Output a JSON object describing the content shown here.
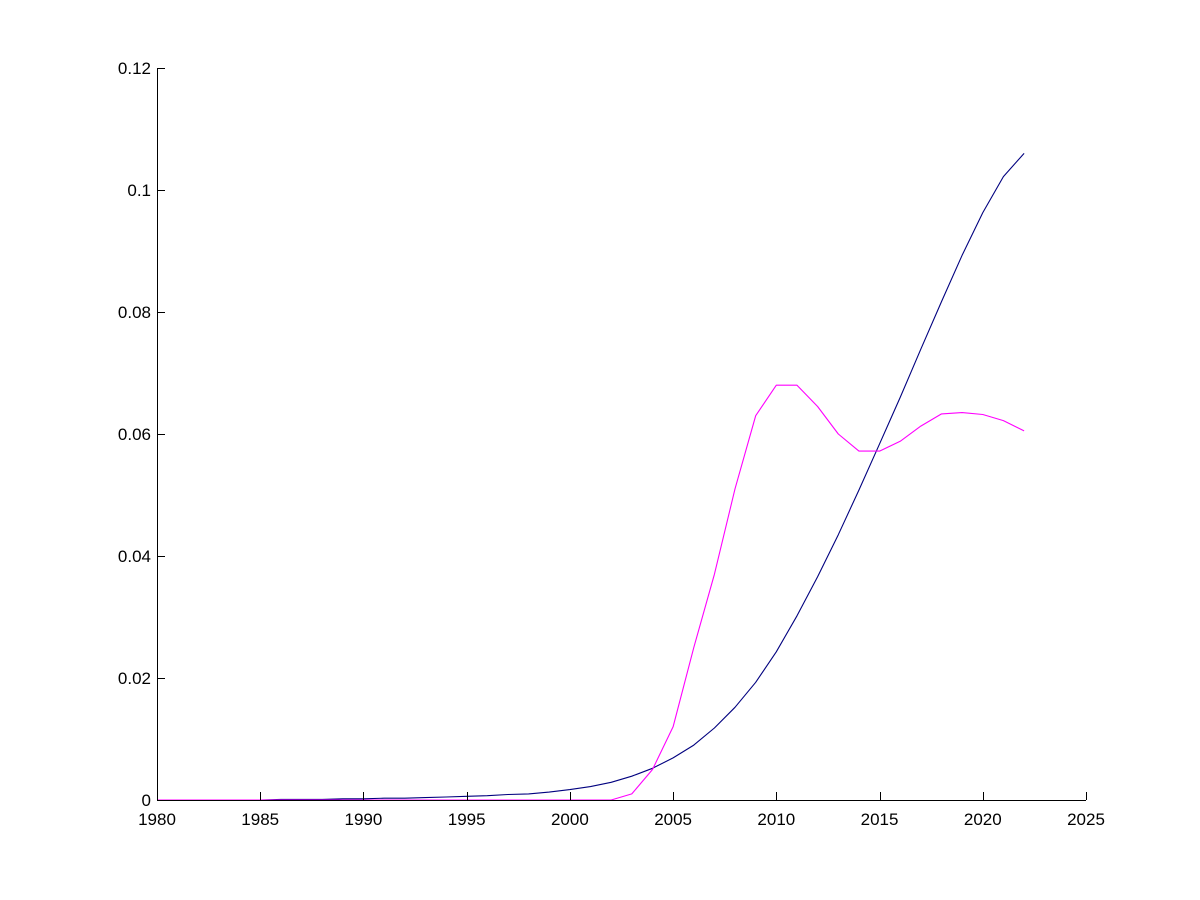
{
  "chart_data": {
    "type": "line",
    "title": "",
    "xlabel": "",
    "ylabel": "",
    "xlim": [
      1980,
      2025
    ],
    "ylim": [
      0,
      0.12
    ],
    "x_ticks": [
      1980,
      1985,
      1990,
      1995,
      2000,
      2005,
      2010,
      2015,
      2020,
      2025
    ],
    "x_tick_labels": [
      "1980",
      "1985",
      "1990",
      "1995",
      "2000",
      "2005",
      "2010",
      "2015",
      "2020",
      "2025"
    ],
    "y_ticks": [
      0,
      0.02,
      0.04,
      0.06,
      0.08,
      0.1,
      0.12
    ],
    "y_tick_labels": [
      "0",
      "0.02",
      "0.04",
      "0.06",
      "0.08",
      "0.1",
      "0.12"
    ],
    "grid": false,
    "legend": "none",
    "series": [
      {
        "color": "#00007f",
        "x": [
          1980,
          1981,
          1982,
          1983,
          1984,
          1985,
          1986,
          1987,
          1988,
          1989,
          1990,
          1991,
          1992,
          1993,
          1994,
          1995,
          1996,
          1997,
          1998,
          1999,
          2000,
          2001,
          2002,
          2003,
          2004,
          2005,
          2006,
          2007,
          2008,
          2009,
          2010,
          2011,
          2012,
          2013,
          2014,
          2015,
          2016,
          2017,
          2018,
          2019,
          2020,
          2021,
          2022
        ],
        "y": [
          0,
          0,
          0,
          0,
          0,
          0,
          0.0001,
          0.0001,
          0.0001,
          0.0002,
          0.0002,
          0.0003,
          0.0003,
          0.0004,
          0.0005,
          0.0006,
          0.0007,
          0.0009,
          0.001,
          0.0013,
          0.0017,
          0.0022,
          0.0029,
          0.0039,
          0.0052,
          0.0069,
          0.009,
          0.0118,
          0.0152,
          0.0193,
          0.0243,
          0.0302,
          0.0366,
          0.0435,
          0.0508,
          0.0584,
          0.066,
          0.0739,
          0.0817,
          0.0893,
          0.0963,
          0.1022,
          0.106
        ]
      },
      {
        "color": "#ff00ff",
        "x": [
          1980,
          1981,
          1982,
          1983,
          1984,
          1985,
          1986,
          1987,
          1988,
          1989,
          1990,
          1991,
          1992,
          1993,
          1994,
          1995,
          1996,
          1997,
          1998,
          1999,
          2000,
          2001,
          2002,
          2003,
          2004,
          2005,
          2006,
          2007,
          2008,
          2009,
          2010,
          2011,
          2012,
          2013,
          2014,
          2015,
          2016,
          2017,
          2018,
          2019,
          2020,
          2021,
          2022
        ],
        "y": [
          0,
          0,
          0,
          0,
          0,
          0,
          0,
          0,
          0,
          0,
          0,
          0,
          0,
          0,
          0,
          0,
          0,
          0,
          0,
          0,
          0,
          0,
          0,
          0.001,
          0.005,
          0.012,
          0.025,
          0.037,
          0.051,
          0.063,
          0.068,
          0.068,
          0.0645,
          0.06,
          0.0572,
          0.0572,
          0.0588,
          0.0613,
          0.0633,
          0.0635,
          0.0632,
          0.0622,
          0.0605
        ]
      }
    ]
  }
}
